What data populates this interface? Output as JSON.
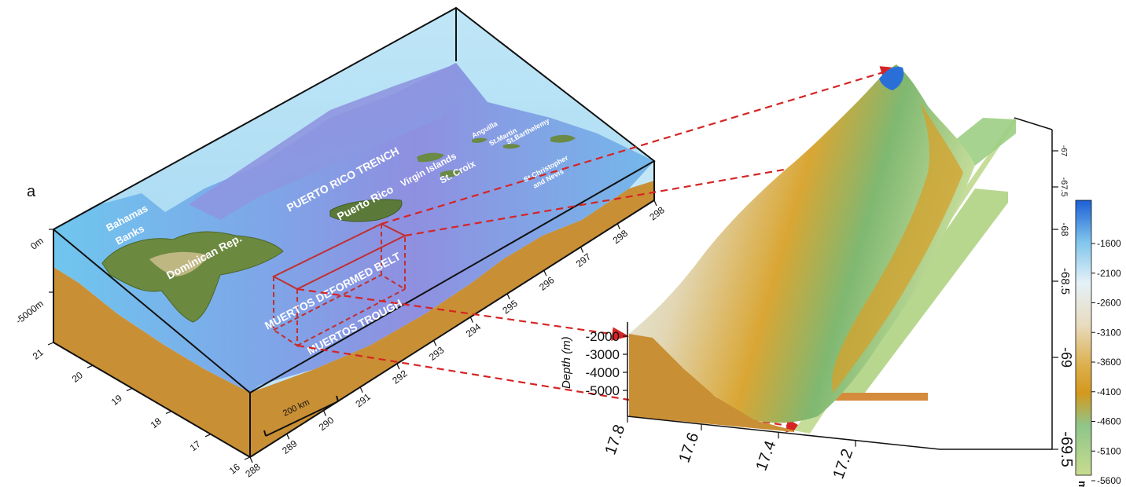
{
  "panel_label": "a",
  "block": {
    "depth_ticks": [
      "0m",
      "-5000m"
    ],
    "lat_ticks": [
      "21",
      "20",
      "19",
      "18",
      "17",
      "16"
    ],
    "lon_ticks": [
      "288",
      "289",
      "290",
      "291",
      "292",
      "293",
      "294",
      "295",
      "296",
      "297",
      "298",
      "298"
    ],
    "scale_bar": "200 km",
    "labels": {
      "bahamas_1": "Bahamas",
      "bahamas_2": "Banks",
      "dominican": "Dominican Rep.",
      "puerto_rico": "Puerto Rico",
      "trench": "PUERTO RICO TRENCH",
      "virgin": "Virgin Islands",
      "st_croix": "St. Croix",
      "anguilla": "Anguilla",
      "st_martin": "St.Martin",
      "st_barth": "St.Barthelemy",
      "st_kitts_1": "St.Christopher",
      "st_kitts_2": "and Nevis",
      "deformed_belt": "MUERTOS DEFORMED BELT",
      "trough": "MUERTOS TROUGH"
    }
  },
  "zoom": {
    "depth_axis_label": "Depth (m)",
    "depth_ticks": [
      "-2000",
      "-3000",
      "-4000",
      "-5000"
    ],
    "lat_ticks": [
      "17.8",
      "17.6",
      "17.4",
      "17.2"
    ],
    "lon_ticks": [
      "-69.5",
      "-69",
      "-68.5",
      "-68",
      "-67.5",
      "-67"
    ]
  },
  "colorbar": {
    "unit": "m",
    "ticks": [
      "-1600",
      "-2100",
      "-2600",
      "-3100",
      "-3600",
      "-4100",
      "-4600",
      "-5100",
      "-5600"
    ],
    "colors": [
      "#1a5fd6",
      "#7fc4ec",
      "#e4f1f7",
      "#e8dfc4",
      "#e0b657",
      "#d69b1c",
      "#8fc58a",
      "#6fb36a",
      "#c6d98c"
    ]
  },
  "colors": {
    "water": "#b8e0f5",
    "sediment": "#c98f35",
    "arrow": "#d62424",
    "box": "#c03030"
  }
}
